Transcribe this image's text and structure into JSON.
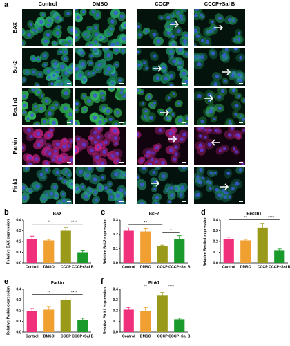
{
  "panel_a": {
    "label": "a",
    "columns": [
      "Control",
      "DMSO",
      "CCCP",
      "CCCP+Sal B"
    ],
    "rows": [
      "BAX",
      "Bcl-2",
      "Beclin1",
      "Parkin",
      "Pink1"
    ]
  },
  "chart_data": [
    {
      "type": "bar",
      "panel_label": "b",
      "title": "BAX",
      "y_label": "Relative BAX expression",
      "categories": [
        "Control",
        "DMSO",
        "CCCP",
        "CCCP+Sal B"
      ],
      "colors": [
        "#f0307a",
        "#f0a030",
        "#9a9a1a",
        "#1a9a2a"
      ],
      "values": [
        0.22,
        0.21,
        0.3,
        0.1
      ],
      "errors": [
        0.03,
        0.01,
        0.03,
        0.02
      ],
      "ylim": [
        0,
        0.4
      ],
      "yticks": [
        {
          "value": 0,
          "label": "0.0"
        },
        0.1,
        0.2,
        0.3,
        0.4
      ],
      "significance": [
        {
          "from": "Control",
          "to": "CCCP",
          "label": "*"
        },
        {
          "from": "CCCP",
          "to": "CCCP+Sal B",
          "label": "****"
        }
      ]
    },
    {
      "type": "bar",
      "panel_label": "c",
      "title": "Bcl-2",
      "y_label": "Relative Bcl-2 expression",
      "categories": [
        "Control",
        "DMSO",
        "CCCP",
        "CCCP+Sal B"
      ],
      "colors": [
        "#f0307a",
        "#f0a030",
        "#9a9a1a",
        "#1a9a2a"
      ],
      "values": [
        0.225,
        0.22,
        0.12,
        0.165
      ],
      "errors": [
        0.02,
        0.02,
        0.005,
        0.025
      ],
      "ylim": [
        0,
        0.3
      ],
      "yticks": [
        {
          "value": 0,
          "label": "0.0"
        },
        0.1,
        0.2,
        0.3
      ],
      "significance": [
        {
          "from": "Control",
          "to": "CCCP",
          "label": "**"
        },
        {
          "from": "CCCP",
          "to": "CCCP+Sal B",
          "label": "*"
        }
      ]
    },
    {
      "type": "bar",
      "panel_label": "d",
      "title": "Beclin1",
      "y_label": "Relative Beclin1 expression",
      "categories": [
        "Control",
        "DMSO",
        "CCCP",
        "CCCP+Sal B"
      ],
      "colors": [
        "#f0307a",
        "#f0a030",
        "#9a9a1a",
        "#1a9a2a"
      ],
      "values": [
        0.22,
        0.21,
        0.33,
        0.12
      ],
      "errors": [
        0.02,
        0.01,
        0.04,
        0.01
      ],
      "ylim": [
        0,
        0.4
      ],
      "yticks": [
        {
          "value": 0,
          "label": "0.0"
        },
        0.1,
        0.2,
        0.3,
        0.4
      ],
      "significance": [
        {
          "from": "Control",
          "to": "CCCP",
          "label": "**"
        },
        {
          "from": "CCCP",
          "to": "CCCP+Sal B",
          "label": "****"
        }
      ]
    },
    {
      "type": "bar",
      "panel_label": "e",
      "title": "Parkin",
      "y_label": "Relative Parkin expression",
      "categories": [
        "Control",
        "DMSO",
        "CCCP",
        "CCCP+Sal B"
      ],
      "colors": [
        "#f0307a",
        "#f0a030",
        "#9a9a1a",
        "#1a9a2a"
      ],
      "values": [
        0.2,
        0.21,
        0.3,
        0.11
      ],
      "errors": [
        0.02,
        0.03,
        0.02,
        0.02
      ],
      "ylim": [
        0,
        0.4
      ],
      "yticks": [
        {
          "value": 0,
          "label": "0.0"
        },
        0.1,
        0.2,
        0.3,
        0.4
      ],
      "significance": [
        {
          "from": "Control",
          "to": "CCCP",
          "label": "**"
        },
        {
          "from": "CCCP",
          "to": "CCCP+Sal B",
          "label": "****"
        }
      ]
    },
    {
      "type": "bar",
      "panel_label": "f",
      "title": "Pink1",
      "y_label": "Relative Pink1 expression",
      "categories": [
        "Control",
        "DMSO",
        "CCCP",
        "CCCP+Sal B"
      ],
      "colors": [
        "#f0307a",
        "#f0a030",
        "#9a9a1a",
        "#1a9a2a"
      ],
      "values": [
        0.21,
        0.2,
        0.34,
        0.12
      ],
      "errors": [
        0.02,
        0.03,
        0.03,
        0.01
      ],
      "ylim": [
        0,
        0.4
      ],
      "yticks": [
        {
          "value": 0,
          "label": "0.0"
        },
        0.1,
        0.2,
        0.3,
        0.4
      ],
      "significance": [
        {
          "from": "Control",
          "to": "CCCP",
          "label": "**"
        },
        {
          "from": "CCCP",
          "to": "CCCP+Sal B",
          "label": "****"
        }
      ]
    }
  ]
}
